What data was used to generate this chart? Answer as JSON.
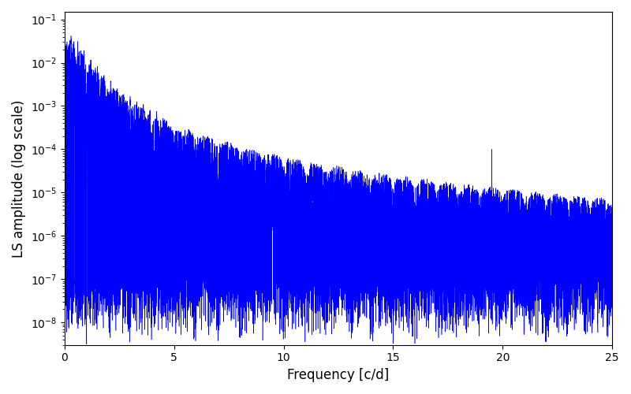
{
  "xlabel": "Frequency [c/d]",
  "ylabel": "LS amplitude (log scale)",
  "xlim": [
    0,
    25
  ],
  "ylim_low": 3e-09,
  "ylim_high": 0.15,
  "line_color": "#0000ff",
  "line_width": 0.4,
  "figsize": [
    8.0,
    5.0
  ],
  "dpi": 100,
  "seed": 42,
  "n_points": 15000,
  "freq_max": 25.0,
  "xticks": [
    0,
    5,
    10,
    15,
    20,
    25
  ],
  "spike_freq": 19.5,
  "spike_val": 0.0001
}
